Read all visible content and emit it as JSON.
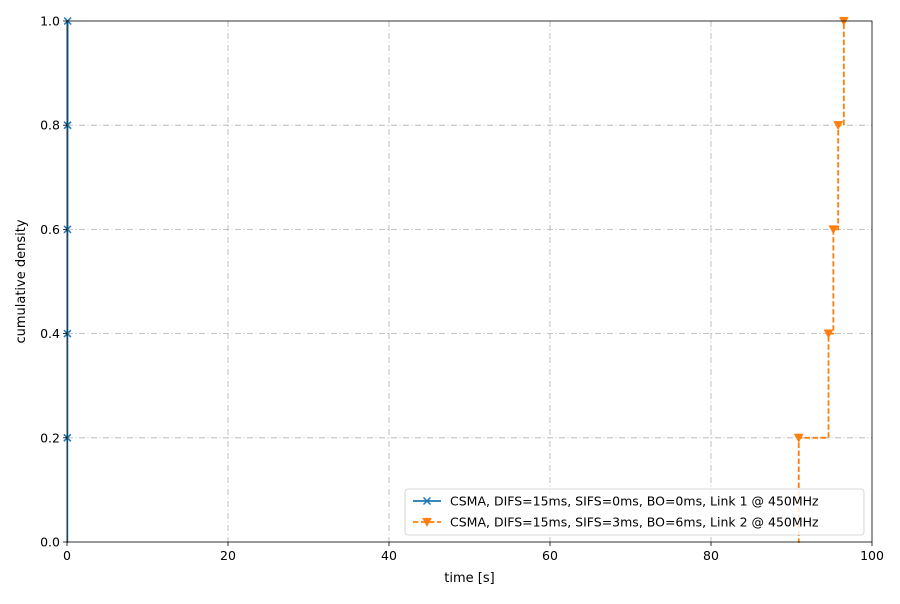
{
  "chart_data": {
    "type": "line",
    "title": "",
    "xlabel": "time [s]",
    "ylabel": "cumulative density",
    "xlim": [
      0,
      100
    ],
    "ylim": [
      0,
      1
    ],
    "xticks": [
      0,
      20,
      40,
      60,
      80,
      100
    ],
    "yticks": [
      0.0,
      0.2,
      0.4,
      0.6,
      0.8,
      1.0
    ],
    "xtick_labels": [
      "0",
      "20",
      "40",
      "60",
      "80",
      "100"
    ],
    "ytick_labels": [
      "0.0",
      "0.2",
      "0.4",
      "0.6",
      "0.8",
      "1.0"
    ],
    "grid": true,
    "legend_position": "lower right",
    "series": [
      {
        "name": "CSMA, DIFS=15ms, SIFS=0ms, BO=0ms, Link 1 @ 450MHz",
        "color": "#1f77b4",
        "line_style": "solid",
        "marker": "x",
        "step": "post",
        "x": [
          0.04,
          0.05,
          0.06,
          0.07,
          0.08
        ],
        "y": [
          0.2,
          0.4,
          0.6,
          0.8,
          1.0
        ]
      },
      {
        "name": "CSMA, DIFS=15ms, SIFS=3ms, BO=6ms, Link 2 @ 450MHz",
        "color": "#ff7f0e",
        "line_style": "dashed",
        "marker": "triangle-down",
        "step": "post",
        "x": [
          90.9,
          94.6,
          95.2,
          95.8,
          96.5
        ],
        "y": [
          0.2,
          0.4,
          0.6,
          0.8,
          1.0
        ]
      }
    ]
  }
}
